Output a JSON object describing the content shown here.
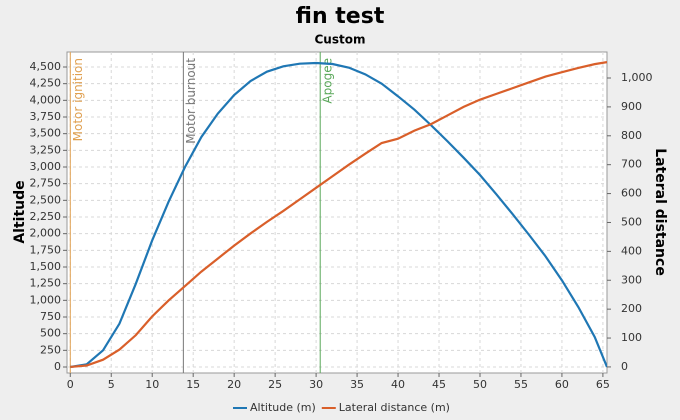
{
  "chart_data": {
    "type": "line",
    "title": "fin test",
    "subtitle": "Custom",
    "ylabel": "Altitude",
    "y2label": "Lateral distance",
    "x": [
      0,
      2,
      4,
      6,
      8,
      10,
      12,
      14,
      16,
      18,
      20,
      22,
      24,
      26,
      28,
      30,
      32,
      34,
      36,
      38,
      40,
      42,
      44,
      46,
      48,
      50,
      52,
      54,
      56,
      58,
      60,
      62,
      64,
      65.5
    ],
    "series": [
      {
        "name": "Altitude (m)",
        "color": "#1f77b4",
        "values": [
          0,
          40,
          250,
          650,
          1250,
          1900,
          2480,
          3000,
          3450,
          3800,
          4080,
          4290,
          4430,
          4510,
          4550,
          4560,
          4545,
          4490,
          4390,
          4250,
          4060,
          3860,
          3630,
          3390,
          3140,
          2880,
          2590,
          2290,
          1980,
          1660,
          1300,
          900,
          450,
          0
        ]
      },
      {
        "name": "Lateral distance (m)",
        "color": "#d95f2a",
        "axis": "y2",
        "values": [
          0,
          5,
          25,
          60,
          110,
          175,
          230,
          280,
          330,
          375,
          420,
          462,
          502,
          540,
          580,
          620,
          660,
          700,
          738,
          775,
          790,
          818,
          840,
          870,
          900,
          925,
          945,
          965,
          985,
          1005,
          1020,
          1035,
          1048,
          1055
        ]
      }
    ],
    "annotations": [
      {
        "label": "Motor ignition",
        "x": 0,
        "color": "#e0a050"
      },
      {
        "label": "Motor burnout",
        "x": 13.8,
        "color": "#777777"
      },
      {
        "label": "Apogee",
        "x": 30.5,
        "color": "#5aa85a"
      }
    ],
    "xlim": [
      -0.4,
      65.5
    ],
    "xticks": [
      0,
      5,
      10,
      15,
      20,
      25,
      30,
      35,
      40,
      45,
      50,
      55,
      60,
      65
    ],
    "ylim": [
      -90,
      4725
    ],
    "yticks": [
      0,
      250,
      500,
      750,
      {
        "value": 1000,
        "label": "1,000"
      },
      {
        "value": 1250,
        "label": "1,250"
      },
      {
        "value": 1500,
        "label": "1,500"
      },
      {
        "value": 1750,
        "label": "1,750"
      },
      {
        "value": 2000,
        "label": "2,000"
      },
      {
        "value": 2250,
        "label": "2,250"
      },
      {
        "value": 2500,
        "label": "2,500"
      },
      {
        "value": 2750,
        "label": "2,750"
      },
      {
        "value": 3000,
        "label": "3,000"
      },
      {
        "value": 3250,
        "label": "3,250"
      },
      {
        "value": 3500,
        "label": "3,500"
      },
      {
        "value": 3750,
        "label": "3,750"
      },
      {
        "value": 4000,
        "label": "4,000"
      },
      {
        "value": 4250,
        "label": "4,250"
      },
      {
        "value": 4500,
        "label": "4,500"
      }
    ],
    "y2lim": [
      -21,
      1090
    ],
    "y2ticks": [
      0,
      100,
      200,
      300,
      400,
      500,
      600,
      700,
      800,
      900,
      {
        "value": 1000,
        "label": "1,000"
      }
    ],
    "grid": true
  }
}
